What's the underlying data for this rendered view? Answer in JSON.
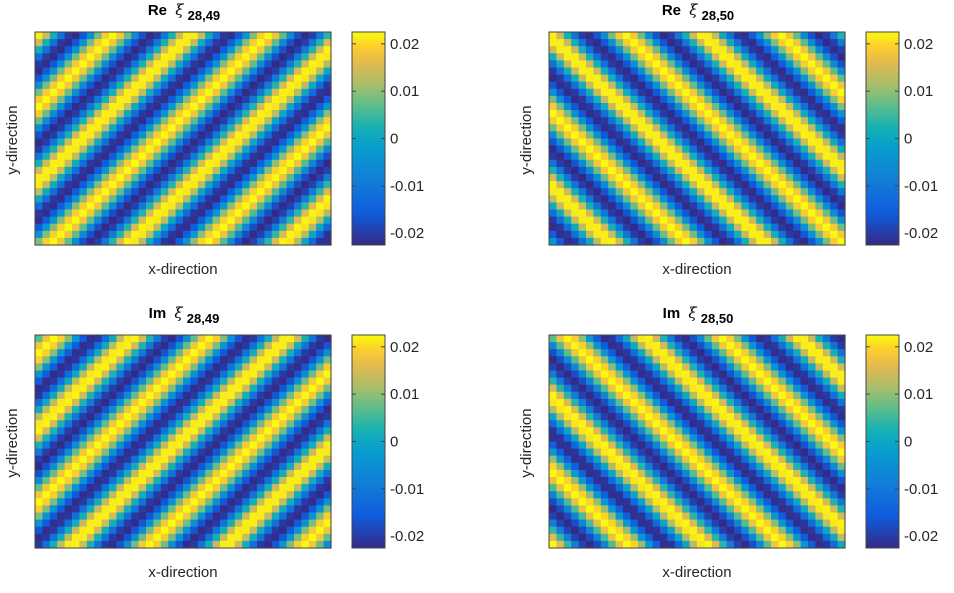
{
  "chart_data": [
    {
      "type": "heatmap",
      "title_prefix": "Re",
      "title_symbol": "ξ",
      "title_subscript": "28,49",
      "xlabel": "x-direction",
      "ylabel": "y-direction",
      "colorbar": {
        "range": [
          -0.0225,
          0.0225
        ],
        "ticks": [
          0.02,
          0.01,
          0,
          -0.01,
          -0.02
        ],
        "tick_labels": [
          "0.02",
          "0.01",
          "0",
          "-0.01",
          "-0.02"
        ],
        "colormap": "parula"
      },
      "grid": {
        "cols": 40,
        "rows": 30
      },
      "wave": {
        "part": "real",
        "kx": 0.6,
        "ky": 0.6,
        "phase": 0.3
      }
    },
    {
      "type": "heatmap",
      "title_prefix": "Re",
      "title_symbol": "ξ",
      "title_subscript": "28,50",
      "xlabel": "x-direction",
      "ylabel": "y-direction",
      "colorbar": {
        "range": [
          -0.0225,
          0.0225
        ],
        "ticks": [
          0.02,
          0.01,
          0,
          -0.01,
          -0.02
        ],
        "tick_labels": [
          "0.02",
          "0.01",
          "0",
          "-0.01",
          "-0.02"
        ],
        "colormap": "parula"
      },
      "grid": {
        "cols": 40,
        "rows": 30
      },
      "wave": {
        "part": "real",
        "kx": 0.6,
        "ky": -0.6,
        "phase": 0.3
      }
    },
    {
      "type": "heatmap",
      "title_prefix": "Im",
      "title_symbol": "ξ",
      "title_subscript": "28,49",
      "xlabel": "x-direction",
      "ylabel": "y-direction",
      "colorbar": {
        "range": [
          -0.0225,
          0.0225
        ],
        "ticks": [
          0.02,
          0.01,
          0,
          -0.01,
          -0.02
        ],
        "tick_labels": [
          "0.02",
          "0.01",
          "0",
          "-0.01",
          "-0.02"
        ],
        "colormap": "parula"
      },
      "grid": {
        "cols": 40,
        "rows": 30
      },
      "wave": {
        "part": "imag",
        "kx": 0.6,
        "ky": 0.6,
        "phase": 0.3
      }
    },
    {
      "type": "heatmap",
      "title_prefix": "Im",
      "title_symbol": "ξ",
      "title_subscript": "28,50",
      "xlabel": "x-direction",
      "ylabel": "y-direction",
      "colorbar": {
        "range": [
          -0.0225,
          0.0225
        ],
        "ticks": [
          0.02,
          0.01,
          0,
          -0.01,
          -0.02
        ],
        "tick_labels": [
          "0.02",
          "0.01",
          "0",
          "-0.01",
          "-0.02"
        ],
        "colormap": "parula"
      },
      "grid": {
        "cols": 40,
        "rows": 30
      },
      "wave": {
        "part": "imag",
        "kx": 0.6,
        "ky": -0.6,
        "phase": 0.3
      }
    }
  ]
}
